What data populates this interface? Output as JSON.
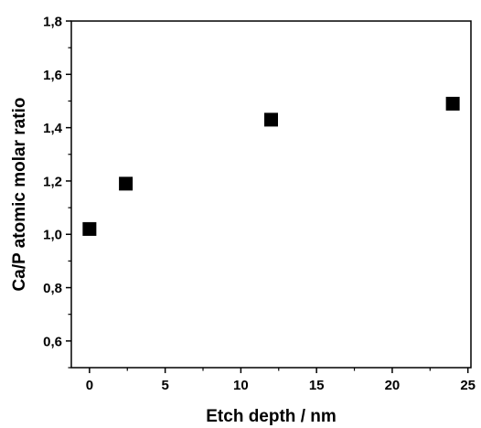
{
  "chart_data": {
    "type": "scatter",
    "title": "",
    "xlabel": "Etch depth / nm",
    "ylabel": "Ca/P atomic molar ratio",
    "xlim": [
      -1.2,
      25.2
    ],
    "ylim": [
      0.5,
      1.8
    ],
    "x_ticks": [
      0,
      5,
      10,
      15,
      20,
      25
    ],
    "x_tick_labels": [
      "0",
      "5",
      "10",
      "15",
      "20",
      "25"
    ],
    "y_ticks": [
      0.6,
      0.8,
      1.0,
      1.2,
      1.4,
      1.6,
      1.8
    ],
    "y_tick_labels": [
      "0,6",
      "0,8",
      "1,0",
      "1,2",
      "1,4",
      "1,6",
      "1,8"
    ],
    "grid": false,
    "legend": "none",
    "marker": "square",
    "color": "#000000",
    "series": [
      {
        "x": [
          0,
          2.4,
          12,
          24
        ],
        "y": [
          1.02,
          1.19,
          1.43,
          1.49
        ]
      }
    ]
  }
}
